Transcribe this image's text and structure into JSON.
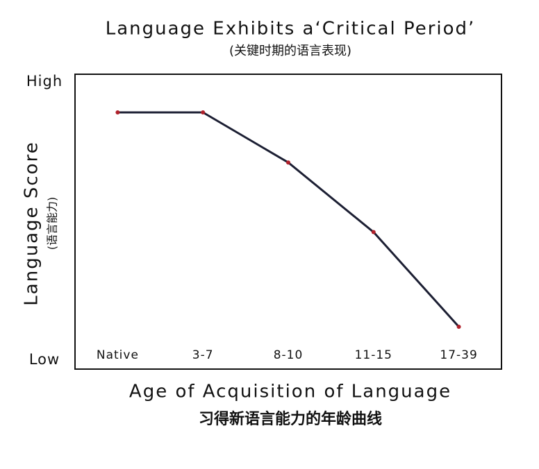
{
  "chart_data": {
    "type": "line",
    "title": "Language Exhibits a‘Critical Period’",
    "subtitle": "(关键时期的语言表现)",
    "y_label": "Language Score",
    "y_sublabel": "(语言能力)",
    "x_label": "Age of Acquisition of Language",
    "x_sublabel": "习得新语言能力的年龄曲线",
    "categories": [
      "Native",
      "3-7",
      "8-10",
      "11-15",
      "17-39"
    ],
    "series": [
      {
        "name": "Language Score",
        "color": "#1c1f33",
        "marker_color": "#b0202a",
        "values": [
          89,
          89,
          71,
          46,
          12
        ]
      }
    ],
    "ylim": [
      -3.2,
      102.7
    ],
    "yticks": [
      {
        "value": 0,
        "label": "Low"
      },
      {
        "value": 100,
        "label": "High"
      }
    ],
    "grid": false
  }
}
